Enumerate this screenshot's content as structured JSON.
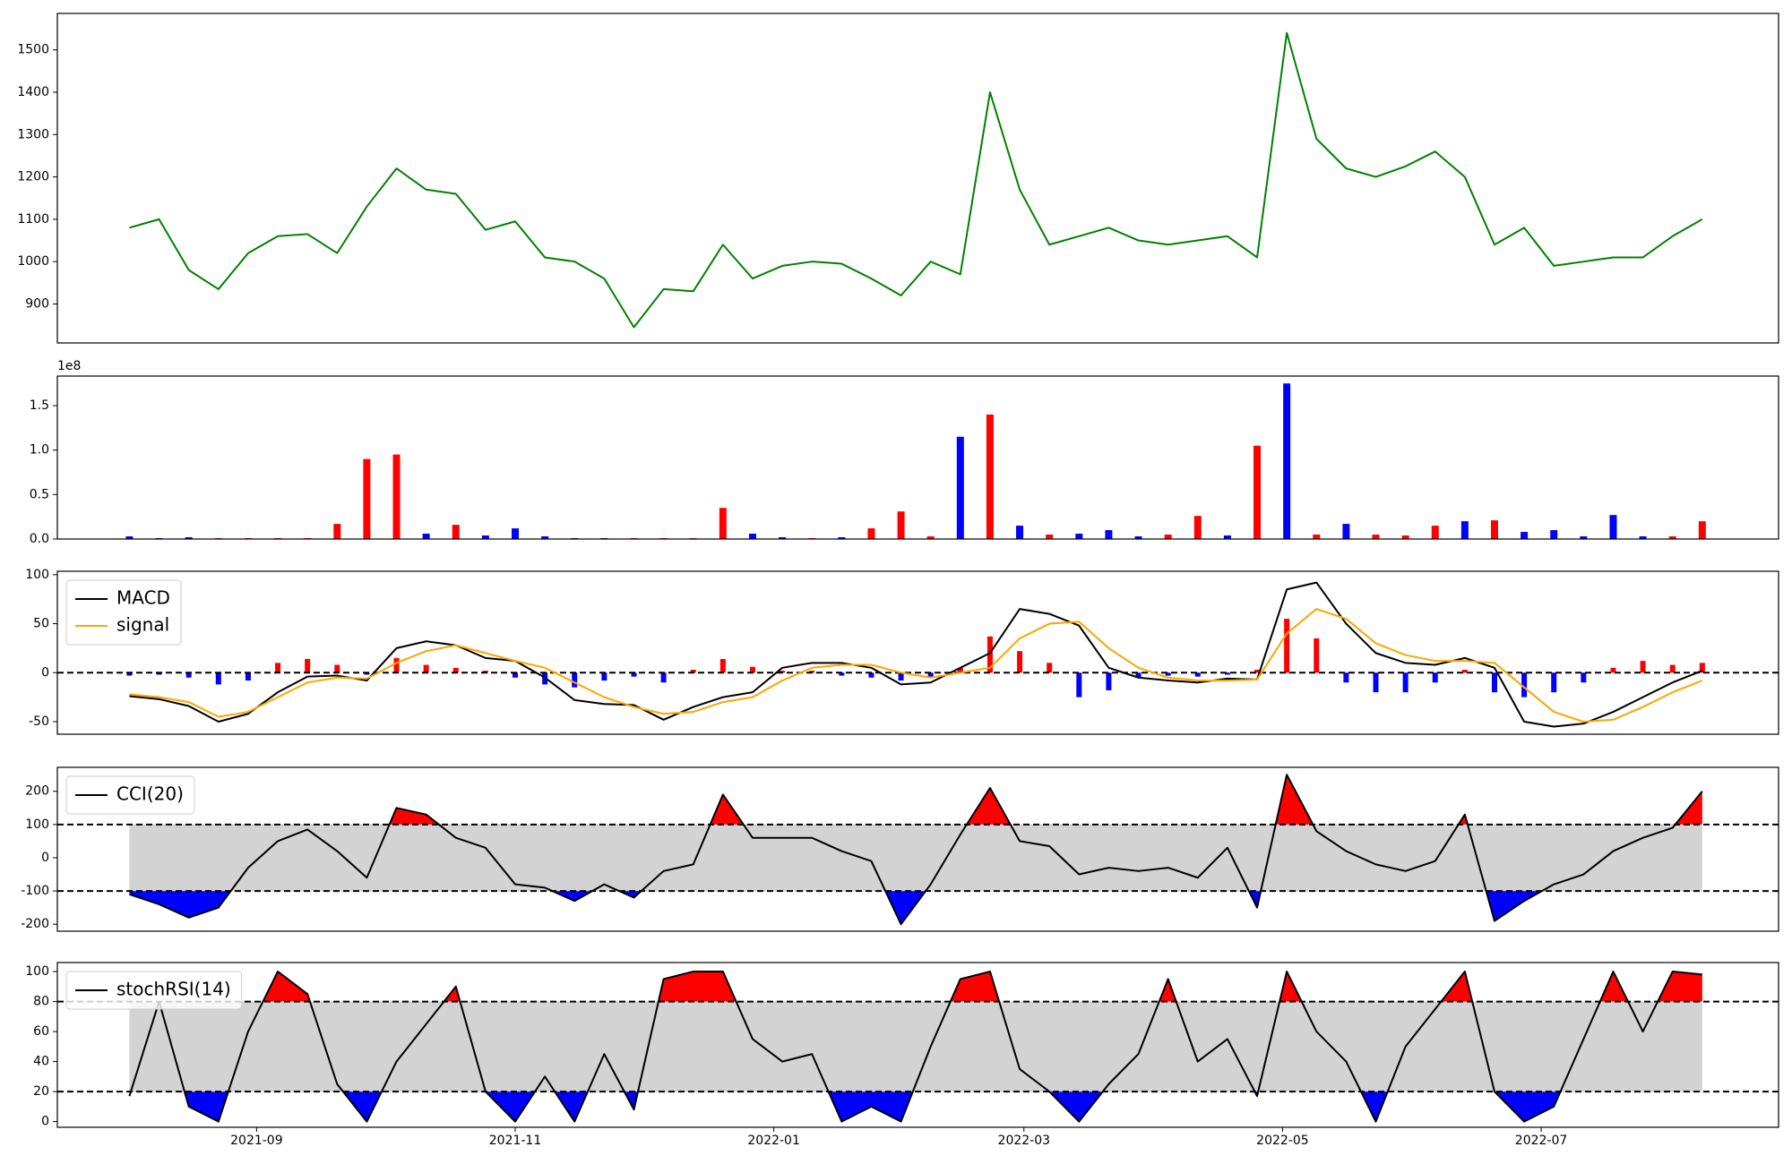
{
  "chart_data": [
    {
      "type": "line",
      "x": [
        "2021-08-02",
        "2021-08-09",
        "2021-08-16",
        "2021-08-23",
        "2021-08-30",
        "2021-09-06",
        "2021-09-13",
        "2021-09-20",
        "2021-09-27",
        "2021-10-04",
        "2021-10-11",
        "2021-10-18",
        "2021-10-25",
        "2021-11-01",
        "2021-11-08",
        "2021-11-15",
        "2021-11-22",
        "2021-11-29",
        "2021-12-06",
        "2021-12-13",
        "2021-12-20",
        "2021-12-27",
        "2022-01-03",
        "2022-01-10",
        "2022-01-17",
        "2022-01-24",
        "2022-01-31",
        "2022-02-07",
        "2022-02-14",
        "2022-02-21",
        "2022-02-28",
        "2022-03-07",
        "2022-03-14",
        "2022-03-21",
        "2022-03-28",
        "2022-04-04",
        "2022-04-11",
        "2022-04-18",
        "2022-04-25",
        "2022-05-02",
        "2022-05-09",
        "2022-05-16",
        "2022-05-23",
        "2022-05-30",
        "2022-06-06",
        "2022-06-13",
        "2022-06-20",
        "2022-06-27",
        "2022-07-04",
        "2022-07-11",
        "2022-07-18",
        "2022-07-25",
        "2022-08-01",
        "2022-08-08"
      ],
      "xlim": [
        "2021-07-16",
        "2022-08-26"
      ],
      "ylim": [
        808,
        1586
      ],
      "yticks": [
        900,
        1000,
        1100,
        1200,
        1300,
        1400,
        1500
      ],
      "series": [
        {
          "color": "#008000",
          "values": [
            1080,
            1100,
            980,
            935,
            1020,
            1060,
            1065,
            1020,
            1130,
            1220,
            1170,
            1160,
            1075,
            1095,
            1010,
            1000,
            960,
            845,
            935,
            930,
            1040,
            960,
            990,
            1000,
            995,
            960,
            920,
            1000,
            970,
            1400,
            1170,
            1040,
            1060,
            1080,
            1050,
            1040,
            1050,
            1060,
            1010,
            1540,
            1290,
            1220,
            1200,
            1225,
            1260,
            1200,
            1040,
            1080,
            990,
            1000,
            1010,
            1010,
            1060,
            1100
          ]
        }
      ]
    },
    {
      "type": "bar",
      "ylim": [
        0,
        183300000
      ],
      "yticks": [
        {
          "value": 0,
          "label": "0.0"
        },
        {
          "value": 50000000,
          "label": "0.5"
        },
        {
          "value": 100000000,
          "label": "1.0"
        },
        {
          "value": 150000000,
          "label": "1.5"
        }
      ],
      "offset_label": "1e8",
      "values": [
        3000000,
        1000000,
        2000000,
        1000000,
        1000000,
        1000000,
        1000000,
        17000000,
        90000000,
        95000000,
        6000000,
        16000000,
        4000000,
        12000000,
        3000000,
        1000000,
        1000000,
        1000000,
        1000000,
        1000000,
        35000000,
        6000000,
        2000000,
        1000000,
        2000000,
        12000000,
        31000000,
        3000000,
        115000000,
        140000000,
        15000000,
        5000000,
        6000000,
        10000000,
        3000000,
        5000000,
        26000000,
        4000000,
        105000000,
        175000000,
        5000000,
        17000000,
        5000000,
        4000000,
        15000000,
        20000000,
        21000000,
        8000000,
        10000000,
        3000000,
        27000000,
        3000000,
        3000000,
        20000000
      ],
      "colors": [
        "#0000ff",
        "#0000ff",
        "#0000ff",
        "#ff0000",
        "#ff0000",
        "#ff0000",
        "#ff0000",
        "#ff0000",
        "#ff0000",
        "#ff0000",
        "#0000ff",
        "#ff0000",
        "#0000ff",
        "#0000ff",
        "#0000ff",
        "#0000ff",
        "#0000ff",
        "#ff0000",
        "#ff0000",
        "#ff0000",
        "#ff0000",
        "#0000ff",
        "#0000ff",
        "#ff0000",
        "#0000ff",
        "#ff0000",
        "#ff0000",
        "#ff0000",
        "#0000ff",
        "#ff0000",
        "#0000ff",
        "#ff0000",
        "#0000ff",
        "#0000ff",
        "#0000ff",
        "#ff0000",
        "#ff0000",
        "#0000ff",
        "#ff0000",
        "#0000ff",
        "#ff0000",
        "#0000ff",
        "#ff0000",
        "#ff0000",
        "#ff0000",
        "#0000ff",
        "#ff0000",
        "#0000ff",
        "#0000ff",
        "#0000ff",
        "#0000ff",
        "#0000ff",
        "#ff0000",
        "#ff0000"
      ]
    },
    {
      "type": "macd",
      "ylim": [
        -62.8,
        103.5
      ],
      "yticks": [
        -50,
        0,
        50,
        100
      ],
      "hline": 0,
      "series": [
        {
          "name": "MACD",
          "color": "#000000",
          "values": [
            -24,
            -27,
            -34,
            -50,
            -42,
            -20,
            -4,
            -3,
            -8,
            25,
            32,
            28,
            15,
            12,
            -5,
            -28,
            -32,
            -33,
            -48,
            -35,
            -25,
            -20,
            5,
            10,
            10,
            5,
            -12,
            -10,
            5,
            20,
            65,
            60,
            48,
            5,
            -5,
            -8,
            -10,
            -6,
            -7,
            85,
            92,
            50,
            20,
            10,
            8,
            15,
            5,
            -50,
            -55,
            -52,
            -40,
            -25,
            -10,
            2
          ]
        },
        {
          "name": "signal",
          "color": "#ffa500",
          "values": [
            -22,
            -25,
            -30,
            -45,
            -40,
            -25,
            -10,
            -5,
            -6,
            10,
            22,
            28,
            20,
            12,
            5,
            -10,
            -25,
            -35,
            -42,
            -40,
            -30,
            -25,
            -8,
            5,
            8,
            8,
            0,
            -5,
            0,
            5,
            35,
            50,
            52,
            25,
            5,
            -5,
            -8,
            -8,
            -7,
            40,
            65,
            55,
            30,
            18,
            12,
            12,
            10,
            -15,
            -40,
            -50,
            -48,
            -35,
            -20,
            -8
          ]
        }
      ],
      "histogram": {
        "values": [
          -3,
          -2,
          -5,
          -12,
          -8,
          10,
          14,
          8,
          -2,
          15,
          8,
          5,
          2,
          -5,
          -12,
          -15,
          -8,
          -4,
          -10,
          3,
          14,
          6,
          2,
          2,
          -3,
          -5,
          -8,
          -4,
          5,
          37,
          22,
          10,
          -25,
          -18,
          -5,
          -3,
          -4,
          -2,
          3,
          55,
          35,
          -10,
          -20,
          -20,
          -10,
          3,
          -20,
          -25,
          -20,
          -10,
          5,
          12,
          8,
          10
        ],
        "colors": {
          "positive": "#ff0000",
          "negative": "#0000ff"
        }
      }
    },
    {
      "type": "band",
      "ylim": [
        -221,
        272
      ],
      "yticks": [
        -200,
        -100,
        0,
        100,
        200
      ],
      "thresholds": [
        -100,
        100
      ],
      "series": [
        {
          "name": "CCI(20)",
          "color": "#000000",
          "values": [
            -110,
            -140,
            -180,
            -150,
            -30,
            50,
            85,
            20,
            -60,
            150,
            130,
            60,
            30,
            -80,
            -90,
            -130,
            -80,
            -120,
            -40,
            -20,
            190,
            60,
            60,
            60,
            20,
            -10,
            -200,
            -80,
            70,
            210,
            50,
            35,
            -50,
            -30,
            -40,
            -30,
            -60,
            30,
            -150,
            250,
            80,
            20,
            -20,
            -40,
            -10,
            130,
            -190,
            -130,
            -80,
            -50,
            20,
            60,
            90,
            200
          ]
        }
      ],
      "fill_colors": {
        "band": "#d3d3d3",
        "above": "#ff0000",
        "below": "#0000ff"
      }
    },
    {
      "type": "band",
      "ylim": [
        -3.8,
        106
      ],
      "yticks": [
        0,
        20,
        40,
        60,
        80,
        100
      ],
      "thresholds": [
        20,
        80
      ],
      "series": [
        {
          "name": "stochRSI(14)",
          "color": "#000000",
          "values": [
            17,
            80,
            10,
            0,
            60,
            100,
            85,
            25,
            0,
            40,
            65,
            90,
            20,
            0,
            30,
            0,
            45,
            8,
            95,
            100,
            100,
            55,
            40,
            45,
            0,
            10,
            0,
            50,
            95,
            100,
            35,
            20,
            0,
            25,
            45,
            95,
            40,
            55,
            17,
            100,
            60,
            40,
            0,
            50,
            75,
            100,
            20,
            0,
            10,
            55,
            100,
            60,
            100,
            98
          ]
        }
      ],
      "fill_colors": {
        "band": "#d3d3d3",
        "above": "#ff0000",
        "below": "#0000ff"
      },
      "xticks": [
        {
          "value": "2021-09-01",
          "label": "2021-09"
        },
        {
          "value": "2021-11-01",
          "label": "2021-11"
        },
        {
          "value": "2022-01-01",
          "label": "2022-01"
        },
        {
          "value": "2022-03-01",
          "label": "2022-03"
        },
        {
          "value": "2022-05-01",
          "label": "2022-05"
        },
        {
          "value": "2022-07-01",
          "label": "2022-07"
        }
      ]
    }
  ]
}
